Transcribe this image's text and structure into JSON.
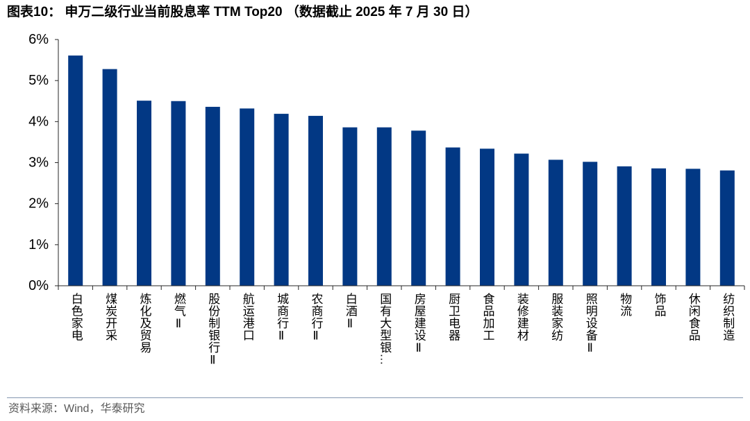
{
  "source": "资料来源：Wind，华泰研究",
  "colors": {
    "bar": "#023884",
    "axis": "#262626"
  },
  "chart_data": {
    "type": "bar",
    "title": "图表10： 申万二级行业当前股息率 TTM Top20 （数据截止 2025 年 7 月 30 日）",
    "xlabel": "",
    "ylabel": "",
    "categories": [
      "白色家电",
      "煤炭开采",
      "炼化及贸易",
      "燃气Ⅱ",
      "股份制银行Ⅱ",
      "航运港口",
      "城商行Ⅱ",
      "农商行Ⅱ",
      "白酒Ⅱ",
      "国有大型银…",
      "房屋建设Ⅱ",
      "厨卫电器",
      "食品加工",
      "装修建材",
      "服装家纺",
      "照明设备Ⅱ",
      "物流",
      "饰品",
      "休闲食品",
      "纺织制造"
    ],
    "values": [
      5.61,
      5.28,
      4.51,
      4.5,
      4.36,
      4.32,
      4.19,
      4.14,
      3.86,
      3.86,
      3.78,
      3.37,
      3.34,
      3.22,
      3.07,
      3.02,
      2.91,
      2.86,
      2.85,
      2.81
    ],
    "ylim": [
      0,
      6
    ],
    "ytick_labels": [
      "0%",
      "1%",
      "2%",
      "3%",
      "4%",
      "5%",
      "6%"
    ],
    "grid": false
  }
}
